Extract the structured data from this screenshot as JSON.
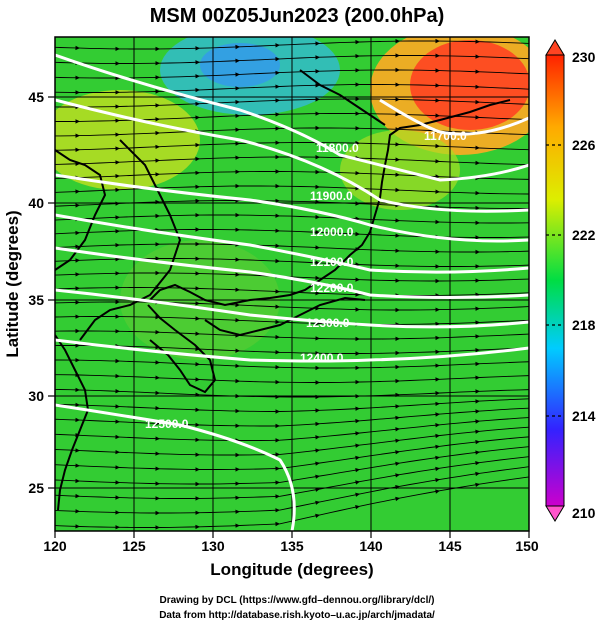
{
  "title": "MSM 00Z05Jun2023 (200.0hPa)",
  "x_label": "Longitude (degrees)",
  "y_label": "Latitude  (degrees)",
  "lon_ticks": [
    "120",
    "125",
    "130",
    "135",
    "140",
    "145",
    "150"
  ],
  "lat_ticks": [
    "25",
    "30",
    "35",
    "40",
    "45"
  ],
  "colorbar": {
    "labels": [
      "230",
      "226",
      "222",
      "218",
      "214",
      "210"
    ],
    "colors": [
      "#cc00cc",
      "#3322ff",
      "#00ccff",
      "#00dd44",
      "#ddee00",
      "#ffaa00",
      "#ff2200"
    ]
  },
  "contours": [
    {
      "label": "11700.0"
    },
    {
      "label": "11800.0"
    },
    {
      "label": "11900.0"
    },
    {
      "label": "12000.0"
    },
    {
      "label": "12100.0"
    },
    {
      "label": "12200.0"
    },
    {
      "label": "12300.0"
    },
    {
      "label": "12400.0"
    },
    {
      "label": "12500.0"
    }
  ],
  "credits": {
    "line1": "Drawing by DCL (https://www.gfd–dennou.org/library/dcl/)",
    "line2": "Data from http://database.rish.kyoto–u.ac.jp/arch/jmadata/"
  }
}
